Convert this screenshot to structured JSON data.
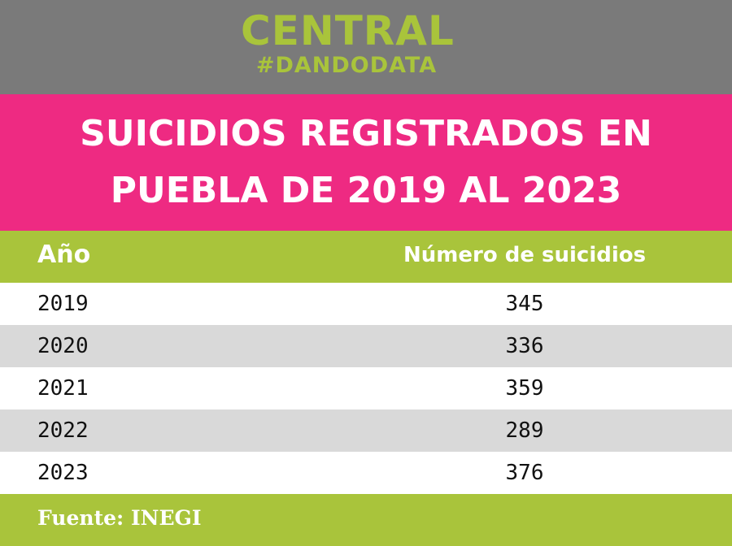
{
  "brand": {
    "name": "CENTRAL",
    "tagline": "#DANDODATA"
  },
  "title": {
    "line1": "SUICIDIOS REGISTRADOS EN",
    "line2": "PUEBLA DE 2019 AL 2023"
  },
  "colors": {
    "brand_band": "#7a7a7a",
    "brand_text": "#a9c43b",
    "title_band": "#ee2a82",
    "header_band": "#a9c43b",
    "row_alt": "#d9d9d9"
  },
  "chart_data": {
    "type": "table",
    "title": "SUICIDIOS REGISTRADOS EN PUEBLA DE 2019 AL 2023",
    "columns": [
      "Año",
      "Número de suicidios"
    ],
    "rows": [
      {
        "year": "2019",
        "count": "345"
      },
      {
        "year": "2020",
        "count": "336"
      },
      {
        "year": "2021",
        "count": "359"
      },
      {
        "year": "2022",
        "count": "289"
      },
      {
        "year": "2023",
        "count": "376"
      }
    ]
  },
  "footer": {
    "source": "Fuente: INEGI"
  }
}
